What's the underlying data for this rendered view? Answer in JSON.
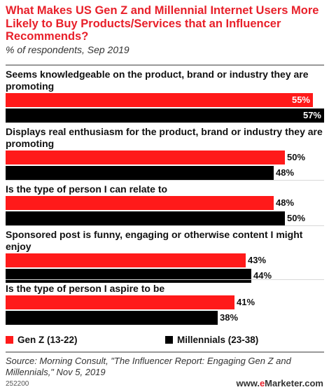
{
  "chart_data": {
    "type": "bar",
    "orientation": "horizontal",
    "title": "What Makes US Gen Z and Millennial Internet Users More Likely to Buy Products/Services that an Influencer Recommends?",
    "subtitle": "% of respondents, Sep 2019",
    "categories": [
      "Seems knowledgeable on the product, brand or industry they are promoting",
      "Displays real enthusiasm for the product, brand or industry they are promoting",
      "Is the type of person I can relate to",
      "Sponsored post is funny, engaging or otherwise content I might enjoy",
      "Is the type of person I aspire to be"
    ],
    "series": [
      {
        "name": "Gen Z (13-22)",
        "color": "#ff1a1a",
        "values": [
          55,
          50,
          48,
          43,
          41
        ],
        "labels": [
          "55%",
          "50%",
          "48%",
          "43%",
          "41%"
        ]
      },
      {
        "name": "Millennials (23-38)",
        "color": "#000000",
        "values": [
          57,
          48,
          50,
          44,
          38
        ],
        "labels": [
          "57%",
          "48%",
          "50%",
          "44%",
          "38%"
        ]
      }
    ],
    "xlim": [
      0,
      57
    ],
    "legend_position": "bottom",
    "grid": false
  },
  "footer": {
    "source": "Source: Morning Consult, \"The Influencer Report: Engaging Gen Z and Millennials,\" Nov 5, 2019",
    "id": "252200",
    "brand_prefix": "www.",
    "brand_e": "e",
    "brand_rest": "Marketer.com"
  }
}
